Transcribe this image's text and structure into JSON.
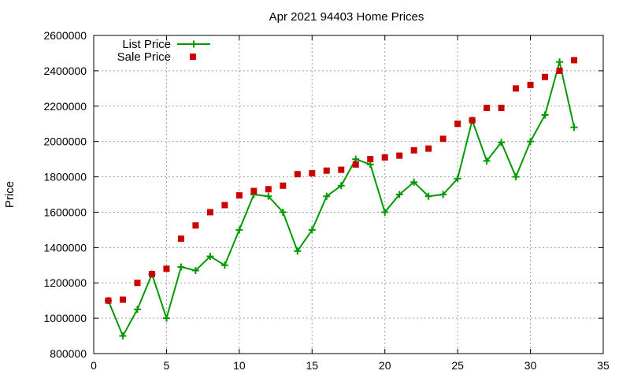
{
  "chart_data": {
    "type": "line",
    "title": "Apr 2021 94403 Home Prices",
    "xlabel": "",
    "ylabel": "Price",
    "xlim": [
      0,
      35
    ],
    "ylim": [
      800000,
      2600000
    ],
    "xticks": [
      0,
      5,
      10,
      15,
      20,
      25,
      30,
      35
    ],
    "yticks": [
      800000,
      1000000,
      1200000,
      1400000,
      1600000,
      1800000,
      2000000,
      2200000,
      2400000,
      2600000
    ],
    "grid": true,
    "legend_position": "top-left",
    "series": [
      {
        "name": "List Price",
        "kind": "line-points",
        "color": "#009900",
        "x": [
          1,
          2,
          3,
          4,
          5,
          6,
          7,
          8,
          9,
          10,
          11,
          12,
          13,
          14,
          15,
          16,
          17,
          18,
          19,
          20,
          21,
          22,
          23,
          24,
          25,
          26,
          27,
          28,
          29,
          30,
          31,
          32,
          33
        ],
        "y": [
          1100000,
          900000,
          1050000,
          1250000,
          1000000,
          1290000,
          1270000,
          1350000,
          1300000,
          1500000,
          1700000,
          1690000,
          1600000,
          1380000,
          1500000,
          1690000,
          1750000,
          1900000,
          1870000,
          1600000,
          1700000,
          1770000,
          1690000,
          1700000,
          1790000,
          2120000,
          1890000,
          1995000,
          1800000,
          2000000,
          2150000,
          2450000,
          2080000
        ]
      },
      {
        "name": "Sale Price",
        "kind": "points",
        "color": "#cc0000",
        "x": [
          1,
          2,
          3,
          4,
          5,
          6,
          7,
          8,
          9,
          10,
          11,
          12,
          13,
          14,
          15,
          16,
          17,
          18,
          19,
          20,
          21,
          22,
          23,
          24,
          25,
          26,
          27,
          28,
          29,
          30,
          31,
          32,
          33
        ],
        "y": [
          1100000,
          1105000,
          1200000,
          1250000,
          1280000,
          1450000,
          1525000,
          1600000,
          1640000,
          1695000,
          1720000,
          1730000,
          1750000,
          1815000,
          1820000,
          1835000,
          1840000,
          1870000,
          1900000,
          1910000,
          1920000,
          1950000,
          1960000,
          2015000,
          2100000,
          2120000,
          2190000,
          2190000,
          2300000,
          2320000,
          2365000,
          2400000,
          2460000
        ]
      }
    ]
  }
}
